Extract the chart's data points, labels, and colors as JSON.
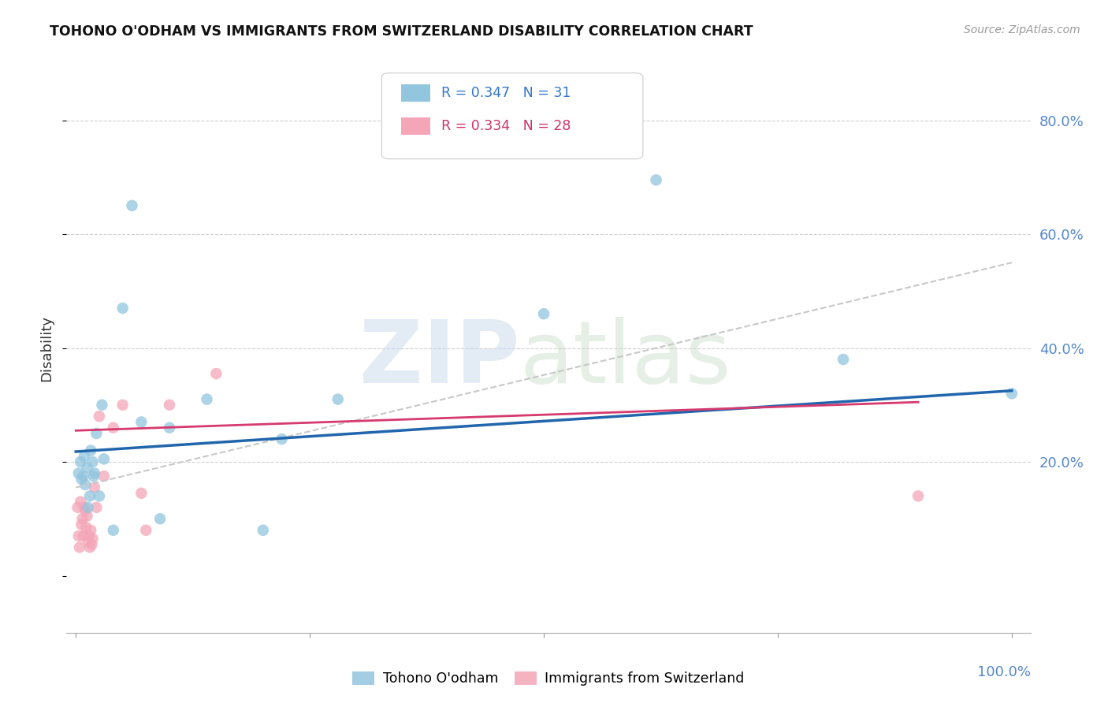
{
  "title": "TOHONO O'ODHAM VS IMMIGRANTS FROM SWITZERLAND DISABILITY CORRELATION CHART",
  "source": "Source: ZipAtlas.com",
  "ylabel": "Disability",
  "ytick_labels": [
    "20.0%",
    "40.0%",
    "60.0%",
    "80.0%"
  ],
  "ytick_values": [
    0.2,
    0.4,
    0.6,
    0.8
  ],
  "xlim": [
    -0.01,
    1.02
  ],
  "ylim": [
    -0.1,
    0.9
  ],
  "blue_color": "#92c5de",
  "pink_color": "#f4a6b8",
  "trendline_blue": "#2166ac",
  "trendline_pink": "#d63a6e",
  "trendline_dashed_color": "#c8c8c8",
  "blue_points_x": [
    0.003,
    0.005,
    0.006,
    0.008,
    0.009,
    0.01,
    0.012,
    0.013,
    0.015,
    0.016,
    0.018,
    0.019,
    0.02,
    0.022,
    0.025,
    0.028,
    0.03,
    0.04,
    0.05,
    0.06,
    0.07,
    0.09,
    0.1,
    0.14,
    0.2,
    0.22,
    0.28,
    0.5,
    0.62,
    0.82,
    1.0
  ],
  "blue_points_y": [
    0.18,
    0.2,
    0.17,
    0.175,
    0.21,
    0.16,
    0.19,
    0.12,
    0.14,
    0.22,
    0.2,
    0.175,
    0.18,
    0.25,
    0.14,
    0.3,
    0.205,
    0.08,
    0.47,
    0.65,
    0.27,
    0.1,
    0.26,
    0.31,
    0.08,
    0.24,
    0.31,
    0.46,
    0.695,
    0.38,
    0.32
  ],
  "pink_points_x": [
    0.002,
    0.003,
    0.004,
    0.005,
    0.006,
    0.007,
    0.008,
    0.009,
    0.01,
    0.011,
    0.012,
    0.013,
    0.014,
    0.015,
    0.016,
    0.017,
    0.018,
    0.02,
    0.022,
    0.025,
    0.03,
    0.04,
    0.05,
    0.07,
    0.075,
    0.1,
    0.15,
    0.9
  ],
  "pink_points_y": [
    0.12,
    0.07,
    0.05,
    0.13,
    0.09,
    0.1,
    0.07,
    0.12,
    0.115,
    0.085,
    0.105,
    0.06,
    0.07,
    0.05,
    0.08,
    0.055,
    0.065,
    0.155,
    0.12,
    0.28,
    0.175,
    0.26,
    0.3,
    0.145,
    0.08,
    0.3,
    0.355,
    0.14
  ],
  "blue_trend_x": [
    0.0,
    1.0
  ],
  "blue_trend_y": [
    0.218,
    0.325
  ],
  "pink_trend_x": [
    0.0,
    0.9
  ],
  "pink_trend_y": [
    0.255,
    0.305
  ],
  "dashed_trend_x": [
    0.0,
    1.0
  ],
  "dashed_trend_y": [
    0.155,
    0.55
  ],
  "legend_r1_text": "R = 0.347   N = 31",
  "legend_r2_text": "R = 0.334   N = 28",
  "legend_r1_color": "#3377cc",
  "legend_r2_color": "#cc3366",
  "legend_n1_color": "#3377cc",
  "legend_n2_color": "#cc3366",
  "bottom_legend_blue": "Tohono O'odham",
  "bottom_legend_pink": "Immigrants from Switzerland"
}
